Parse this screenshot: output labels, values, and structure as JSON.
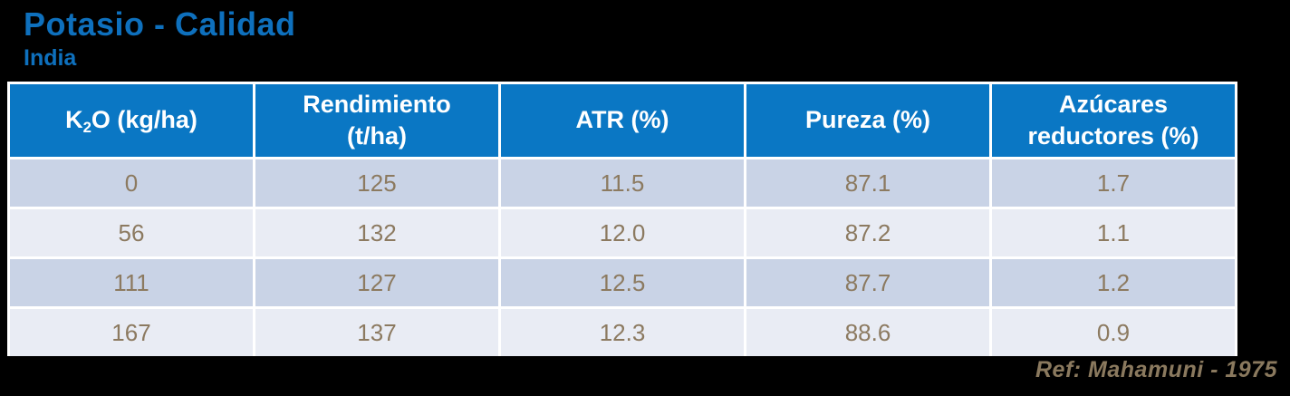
{
  "header": {
    "title": "Potasio - Calidad",
    "subtitle": "India",
    "title_color": "#0e70bd"
  },
  "chart_data": {
    "type": "table",
    "title": "Potasio - Calidad",
    "subtitle": "India",
    "columns": [
      "K2O (kg/ha)",
      "Rendimiento (t/ha)",
      "ATR (%)",
      "Pureza (%)",
      "Azúcares reductores (%)"
    ],
    "header_display": [
      {
        "prefix": "K",
        "sub": "2",
        "suffix": "O (kg/ha)"
      },
      {
        "line1": "Rendimiento",
        "line2": "(t/ha)"
      },
      {
        "line1": "ATR (%)",
        "line2": ""
      },
      {
        "line1": "Pureza (%)",
        "line2": ""
      },
      {
        "line1": "Azúcares",
        "line2": "reductores (%)"
      }
    ],
    "rows": [
      [
        "0",
        "125",
        "11.5",
        "87.1",
        "1.7"
      ],
      [
        "56",
        "132",
        "12.0",
        "87.2",
        "1.1"
      ],
      [
        "111",
        "127",
        "12.5",
        "87.7",
        "1.2"
      ],
      [
        "167",
        "137",
        "12.3",
        "88.6",
        "0.9"
      ]
    ]
  },
  "footer": {
    "ref": "Ref: Mahamuni - 1975"
  },
  "colors": {
    "background": "#000000",
    "title_blue": "#0e70bd",
    "header_bg": "#0a77c4",
    "header_text": "#ffffff",
    "row_dark": "#c9d3e6",
    "row_light": "#e9ecf4",
    "cell_text": "#8c7a60",
    "ref_text": "#8a795e",
    "border": "#ffffff"
  }
}
